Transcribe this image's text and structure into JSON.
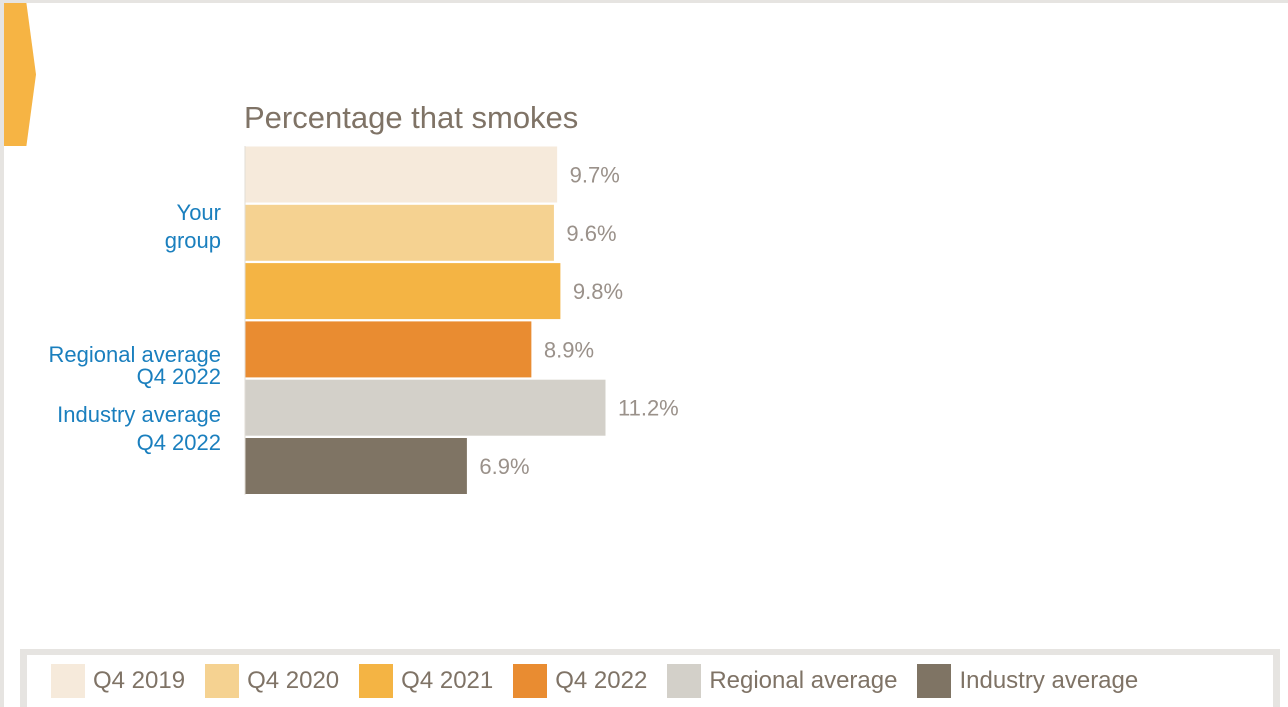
{
  "chart_data": {
    "type": "bar",
    "orientation": "horizontal",
    "title": "Percentage that smokes",
    "groups": [
      {
        "label": "Your group",
        "lines": [
          "Your",
          "group"
        ],
        "bars": [
          0,
          1,
          2,
          3
        ]
      },
      {
        "label": "Regional average Q4 2022",
        "lines": [
          "Regional average",
          "Q4 2022"
        ],
        "bars": [
          4
        ]
      },
      {
        "label": "Industry average Q4 2022",
        "lines": [
          "Industry average",
          "Q4 2022"
        ],
        "bars": [
          5
        ]
      }
    ],
    "series": [
      {
        "name": "Q4 2019",
        "value": 9.7,
        "label": "9.7%",
        "color": "#f6eadb"
      },
      {
        "name": "Q4 2020",
        "value": 9.6,
        "label": "9.6%",
        "color": "#f5d291"
      },
      {
        "name": "Q4 2021",
        "value": 9.8,
        "label": "9.8%",
        "color": "#f4b444"
      },
      {
        "name": "Q4 2022",
        "value": 8.9,
        "label": "8.9%",
        "color": "#e98c31"
      },
      {
        "name": "Regional average",
        "value": 11.2,
        "label": "11.2%",
        "color": "#d3d0c9"
      },
      {
        "name": "Industry average",
        "value": 6.9,
        "label": "6.9%",
        "color": "#7f7464"
      }
    ],
    "xlim": [
      0,
      11.2
    ],
    "grid": false,
    "legend_position": "bottom"
  }
}
